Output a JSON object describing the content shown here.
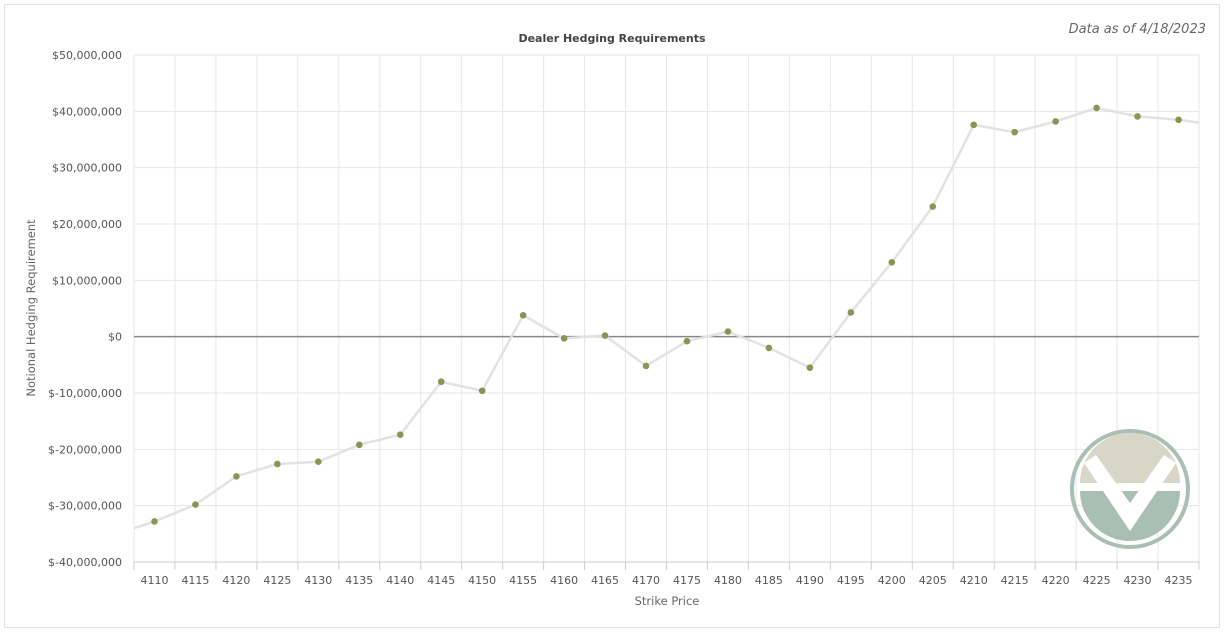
{
  "header": {
    "as_of": "Data as of 4/18/2023"
  },
  "colors": {
    "line": "#e2e2e2",
    "point": "#8a9455",
    "grid": "#e6e6e6",
    "zero_line": "#888888",
    "logo_dark": "#a9bfb3",
    "logo_light": "#d8d6c6"
  },
  "logo": {
    "icon": "stylized-v-circle-logo"
  },
  "chart_data": {
    "type": "line",
    "title": "Dealer Hedging Requirements",
    "xlabel": "Strike Price",
    "ylabel": "Notional Hedging Requirement",
    "ylim": [
      -40000000,
      50000000
    ],
    "yticks": [
      50000000,
      40000000,
      30000000,
      20000000,
      10000000,
      0,
      -10000000,
      -20000000,
      -30000000,
      -40000000
    ],
    "ytick_labels": [
      "$50,000,000",
      "$40,000,000",
      "$30,000,000",
      "$20,000,000",
      "$10,000,000",
      "$0",
      "$-10,000,000",
      "$-20,000,000",
      "$-30,000,000",
      "$-40,000,000"
    ],
    "categories": [
      "4110",
      "4115",
      "4120",
      "4125",
      "4130",
      "4135",
      "4140",
      "4145",
      "4150",
      "4155",
      "4160",
      "4165",
      "4170",
      "4175",
      "4180",
      "4185",
      "4190",
      "4195",
      "4200",
      "4205",
      "4210",
      "4215",
      "4220",
      "4225",
      "4230",
      "4235"
    ],
    "series": [
      {
        "values": [
          -32800000,
          -29800000,
          -24800000,
          -22600000,
          -22200000,
          -19200000,
          -17400000,
          -8000000,
          -9600000,
          3800000,
          -300000,
          200000,
          -5200000,
          -800000,
          900000,
          -2000000,
          -5500000,
          4300000,
          13200000,
          23100000,
          37600000,
          36300000,
          38200000,
          40600000,
          39100000,
          38500000
        ]
      }
    ],
    "edge_values": {
      "left": -34000000,
      "right": 38000000
    },
    "grid": true,
    "zero_line": true
  }
}
